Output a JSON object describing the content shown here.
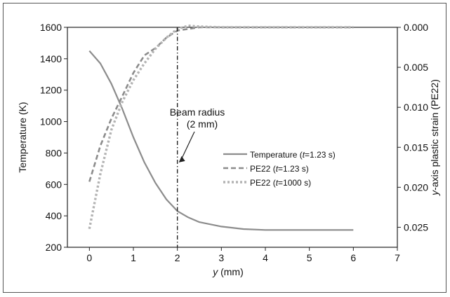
{
  "chart_data": {
    "type": "line",
    "xlabel_var": "y",
    "xlabel_unit": " (mm)",
    "ylabel_left": "Temperature (K)",
    "ylabel_right_var": "y",
    "ylabel_right_rest": "-axis plastic strain (PE22)",
    "xlim": [
      -0.5,
      7
    ],
    "ylim_left": [
      200,
      1600
    ],
    "ylim_right": [
      0.0,
      0.0275
    ],
    "right_axis_inverted": true,
    "x_ticks": [
      0,
      1,
      2,
      3,
      4,
      5,
      6,
      7
    ],
    "y_left_ticks": [
      200,
      400,
      600,
      800,
      1000,
      1200,
      1400,
      1600
    ],
    "y_right_ticks": [
      "0.000",
      "0.005",
      "0.010",
      "0.015",
      "0.020",
      "0.025"
    ],
    "y_right_tick_values": [
      0.0,
      0.005,
      0.01,
      0.015,
      0.02,
      0.025
    ],
    "annotation": {
      "line1": "Beam radius",
      "line2": "(2 mm)",
      "x": 2,
      "arrow_to_y": 740
    },
    "series": [
      {
        "name": "Temperature",
        "name_time": "t",
        "name_time_value": "=1.23 s",
        "axis": "left",
        "style": "solid",
        "color": "#8c8c8c",
        "x": [
          0,
          0.25,
          0.5,
          0.75,
          1.0,
          1.25,
          1.5,
          1.75,
          2.0,
          2.25,
          2.5,
          3.0,
          3.5,
          4.0,
          5.0,
          6.0
        ],
        "y": [
          1450,
          1370,
          1240,
          1080,
          900,
          740,
          610,
          505,
          430,
          390,
          360,
          332,
          316,
          310,
          310,
          310
        ]
      },
      {
        "name": "PE22",
        "name_time": "t",
        "name_time_value": "=1.23 s",
        "axis": "right",
        "style": "dashed",
        "color": "#8c8c8c",
        "x": [
          0,
          0.25,
          0.5,
          0.75,
          1.0,
          1.25,
          1.5,
          1.75,
          2.0,
          2.5,
          3.0,
          4.0,
          5.0,
          6.0
        ],
        "y": [
          0.0193,
          0.0148,
          0.0114,
          0.0086,
          0.0057,
          0.0035,
          0.0026,
          0.0013,
          0.0004,
          0.0,
          0.0,
          0.0,
          0.0,
          0.0
        ]
      },
      {
        "name": "PE22",
        "name_time": "t",
        "name_time_value": "=1000 s",
        "axis": "right",
        "style": "dotted",
        "color": "#b3b3b3",
        "x": [
          0,
          0.25,
          0.5,
          0.75,
          1.0,
          1.25,
          1.5,
          1.75,
          2.0,
          2.25,
          2.5,
          3.0,
          4.0,
          5.0,
          6.0
        ],
        "y": [
          0.0252,
          0.0183,
          0.0128,
          0.0093,
          0.0066,
          0.0045,
          0.0027,
          0.0013,
          0.0002,
          -0.0002,
          -0.0001,
          0.0,
          0.0,
          0.0,
          0.0
        ]
      }
    ],
    "legend_position": "center-right",
    "grid": false
  }
}
